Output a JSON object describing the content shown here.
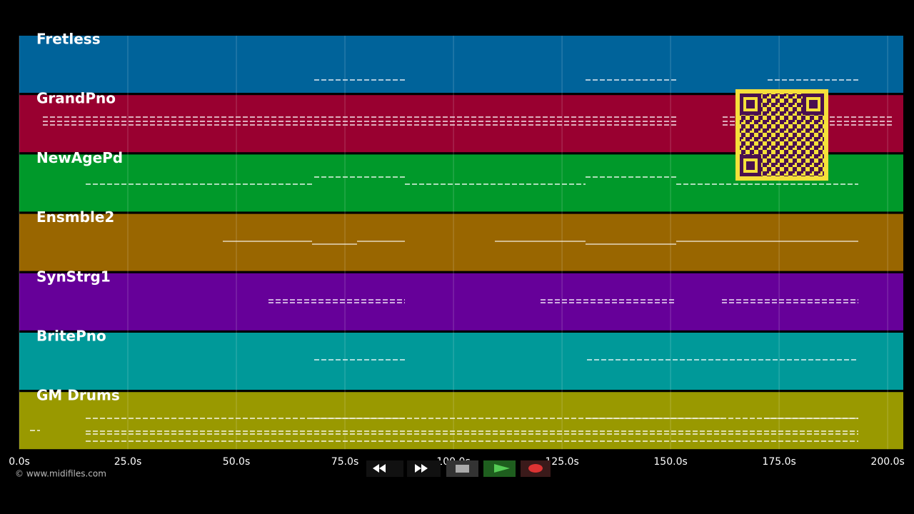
{
  "tracks": [
    {
      "name": "Fretless",
      "color": "#00639a"
    },
    {
      "name": "GrandPno",
      "color": "#990030"
    },
    {
      "name": "NewAgePd",
      "color": "#00992a"
    },
    {
      "name": "Ensmble2",
      "color": "#996600"
    },
    {
      "name": "SynStrg1",
      "color": "#660099"
    },
    {
      "name": "BritePno",
      "color": "#009999"
    },
    {
      "name": "GM Drums",
      "color": "#999900"
    }
  ],
  "timeline": {
    "xlim": [
      0,
      203.6
    ],
    "xticks": [
      {
        "value": 0,
        "label": "0.0s"
      },
      {
        "value": 25,
        "label": "25.0s"
      },
      {
        "value": 50,
        "label": "50.0s"
      },
      {
        "value": 75,
        "label": "75.0s"
      },
      {
        "value": 100,
        "label": "100.0s"
      },
      {
        "value": 125,
        "label": "125.0s"
      },
      {
        "value": 150,
        "label": "150.0s"
      },
      {
        "value": 175,
        "label": "175.0s"
      },
      {
        "value": 200,
        "label": "200.0s"
      }
    ]
  },
  "footer": {
    "copyright": "© www.midifiles.com"
  }
}
